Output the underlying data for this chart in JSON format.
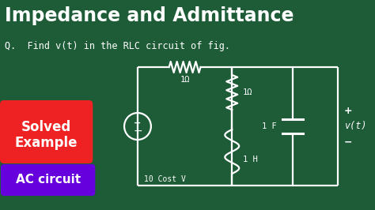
{
  "bg_color": "#1e5c38",
  "title": "Impedance and Admittance",
  "subtitle": "Q.  Find v(t) in the RLC circuit of fig.",
  "title_color": "#ffffff",
  "subtitle_color": "#ffffff",
  "badge1_text1": "Solved",
  "badge1_text2": "Example",
  "badge1_bg": "#ee2222",
  "badge2_text": "AC circuit",
  "badge2_bg": "#6600dd",
  "circuit_color": "#ffffff",
  "label_resistor_top": "1Ω",
  "label_resistor_mid": "1Ω",
  "label_inductor": "1 H",
  "label_capacitor": "1 F",
  "label_source": "10 Cost V",
  "label_vt_plus": "+",
  "label_vt_minus": "−",
  "label_vt": "v(t)",
  "figsize": [
    4.74,
    2.66
  ],
  "dpi": 100,
  "cl": 175,
  "cr": 430,
  "ct": 85,
  "cb": 235,
  "cmx": 295,
  "src_r": 17
}
